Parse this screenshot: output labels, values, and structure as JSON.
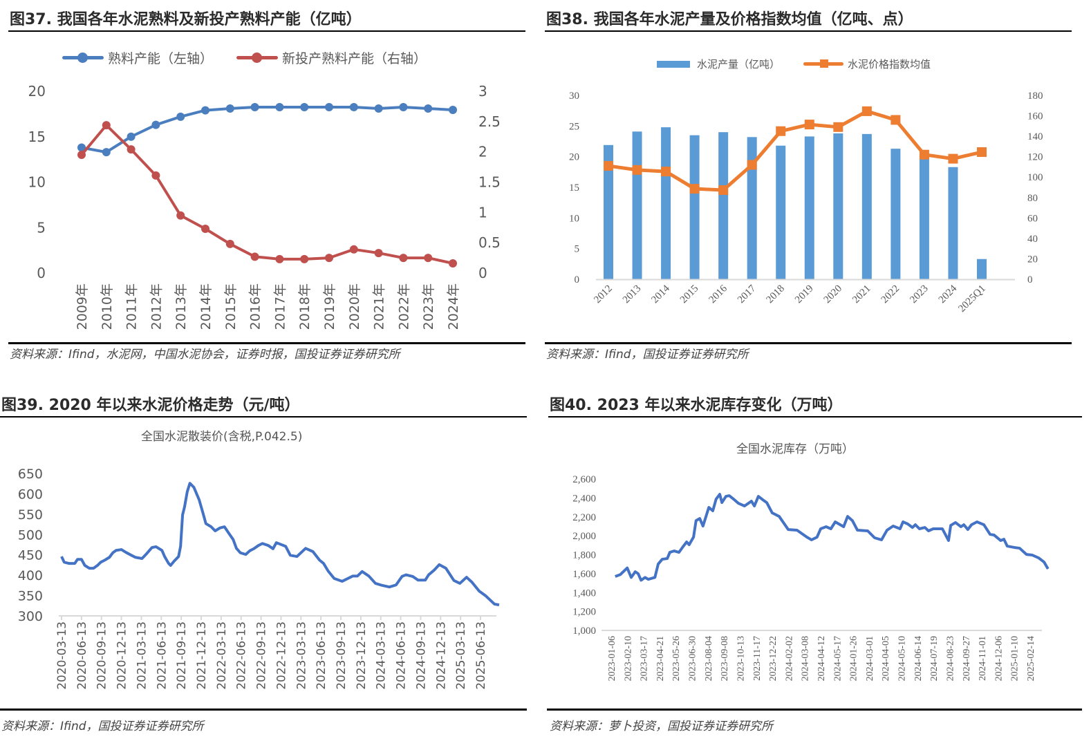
{
  "colors": {
    "blue": "#4a7ebf",
    "red": "#c0504d",
    "bar_blue": "#5b9bd5",
    "orange": "#ed7d31",
    "line_blue": "#4472c4"
  },
  "fig37": {
    "title": "图37. 我国各年水泥熟料及新投产熟料产能（亿吨）",
    "source": "资料来源：Ifind，水泥网，中国水泥协会，证券时报，国投证券证券研究所"
  },
  "fig38": {
    "title": "图38. 我国各年水泥产量及价格指数均值（亿吨、点）",
    "source": "资料来源：Ifind，国投证券证券研究所"
  },
  "fig39": {
    "title": "图39. 2020 年以来水泥价格走势（元/吨）",
    "source": "资料来源：Ifind，国投证券证券研究所"
  },
  "fig40": {
    "title": "图40. 2023 年以来水泥库存变化（万吨）",
    "source": "资料来源：萝卜投资，国投证券证券研究所"
  },
  "chart_data": [
    {
      "type": "line",
      "title": "图37. 我国各年水泥熟料及新投产熟料产能（亿吨）",
      "categories": [
        "2009年",
        "2010年",
        "2011年",
        "2012年",
        "2013年",
        "2014年",
        "2015年",
        "2016年",
        "2017年",
        "2018年",
        "2019年",
        "2020年",
        "2021年",
        "2022年",
        "2023年",
        "2024年"
      ],
      "series": [
        {
          "name": "熟料产能（左轴）",
          "axis": "left",
          "values": [
            13.8,
            13.3,
            15.0,
            16.3,
            17.2,
            17.9,
            18.1,
            18.25,
            18.25,
            18.25,
            18.25,
            18.25,
            18.1,
            18.25,
            18.1,
            17.95
          ]
        },
        {
          "name": "新投产熟料产能（右轴）",
          "axis": "right",
          "values": [
            1.95,
            2.44,
            2.04,
            1.61,
            0.95,
            0.73,
            0.48,
            0.27,
            0.23,
            0.23,
            0.25,
            0.39,
            0.33,
            0.25,
            0.25,
            0.16
          ]
        }
      ],
      "ylim_left": [
        0,
        20
      ],
      "yticks_left": [
        "0",
        "5",
        "10",
        "15",
        "20"
      ],
      "ylim_right": [
        0,
        3
      ],
      "yticks_right": [
        "0",
        "0.5",
        "1",
        "1.5",
        "2",
        "2.5",
        "3"
      ],
      "legend": "top",
      "grid": false
    },
    {
      "type": "bar",
      "title": "图38. 我国各年水泥产量及价格指数均值（亿吨、点）",
      "categories": [
        "2012",
        "2013",
        "2014",
        "2015",
        "2016",
        "2017",
        "2018",
        "2019",
        "2020",
        "2021",
        "2022",
        "2023",
        "2024",
        "2025Q1"
      ],
      "series": [
        {
          "name": "水泥产量（亿吨）",
          "type": "bar",
          "axis": "left",
          "values": [
            21.9,
            24.1,
            24.8,
            23.5,
            24.0,
            23.2,
            21.8,
            23.3,
            23.8,
            23.7,
            21.3,
            20.2,
            18.3,
            3.3
          ]
        },
        {
          "name": "水泥价格指数均值",
          "type": "line",
          "axis": "right",
          "values": [
            111,
            107,
            105.5,
            88.6,
            87.3,
            112,
            145,
            151.5,
            149,
            164.5,
            156,
            122,
            118,
            124.5
          ]
        }
      ],
      "ylim_left": [
        0,
        30
      ],
      "yticks_left": [
        "0",
        "5",
        "10",
        "15",
        "20",
        "25",
        "30"
      ],
      "ylim_right": [
        0,
        180
      ],
      "yticks_right": [
        "0",
        "20",
        "40",
        "60",
        "80",
        "100",
        "120",
        "140",
        "160",
        "180"
      ],
      "legend": "top",
      "grid": false
    },
    {
      "type": "line",
      "title": "全国水泥散装价(含税,P.042.5)",
      "x_unit": "months since 2020-03-13",
      "x": [
        0,
        0.4,
        1.1,
        2.0,
        2.4,
        3.0,
        3.5,
        4.2,
        4.8,
        5.4,
        5.9,
        6.5,
        7.2,
        7.7,
        8.2,
        9.0,
        9.7,
        10.5,
        11.1,
        12.1,
        12.8,
        13.6,
        14.2,
        15.1,
        15.5,
        16.1,
        16.4,
        16.9,
        17.6,
        17.9,
        18.2,
        18.5,
        18.9,
        19.3,
        19.9,
        20.7,
        21.3,
        21.7,
        22.5,
        23.1,
        23.8,
        24.5,
        25.2,
        25.8,
        26.3,
        26.9,
        27.7,
        28.3,
        28.9,
        29.6,
        30.2,
        31.1,
        31.8,
        32.3,
        33.7,
        34.4,
        35.4,
        36.7,
        37.8,
        38.8,
        39.4,
        40.1,
        41.0,
        42.2,
        43.8,
        44.5,
        45.2,
        46.2,
        47.2,
        48.2,
        49.3,
        50.3,
        51.2,
        51.8,
        52.8,
        53.6,
        54.7,
        55.2,
        56.0,
        56.8,
        57.8,
        59.0,
        59.9,
        60.9,
        61.7,
        62.8,
        63.8,
        65.1,
        65.8
      ],
      "values": [
        446,
        432,
        429,
        429,
        439,
        439,
        424,
        417,
        417,
        424,
        432,
        437,
        444,
        455,
        461,
        463,
        456,
        449,
        444,
        441,
        453,
        468,
        470,
        461,
        446,
        429,
        424,
        434,
        446,
        471,
        548,
        568,
        605,
        626,
        616,
        585,
        551,
        527,
        519,
        509,
        516,
        519,
        502,
        488,
        466,
        455,
        451,
        460,
        465,
        473,
        478,
        473,
        465,
        480,
        471,
        449,
        446,
        466,
        458,
        437,
        429,
        410,
        392,
        385,
        398,
        398,
        409,
        398,
        380,
        375,
        371,
        376,
        397,
        401,
        397,
        388,
        388,
        401,
        412,
        426,
        417,
        387,
        380,
        395,
        383,
        361,
        349,
        329,
        327
      ],
      "xlim": [
        0,
        66
      ],
      "xticks": [
        "2020-03-13",
        "2020-06-13",
        "2020-09-13",
        "2020-12-13",
        "2021-03-13",
        "2021-06-13",
        "2021-09-13",
        "2021-12-13",
        "2022-03-13",
        "2022-06-13",
        "2022-09-13",
        "2022-12-13",
        "2023-03-13",
        "2023-06-13",
        "2023-09-13",
        "2023-12-13",
        "2024-03-13",
        "2024-06-13",
        "2024-09-13",
        "2024-12-13",
        "2025-03-13",
        "2025-06-13"
      ],
      "ylim": [
        300,
        650
      ],
      "yticks": [
        "300",
        "350",
        "400",
        "450",
        "500",
        "550",
        "600",
        "650"
      ],
      "grid": false
    },
    {
      "type": "line",
      "title": "全国水泥库存（万吨）",
      "x_unit": "weeks since 2023-01-06",
      "x": [
        1.1,
        2.5,
        4.4,
        5.5,
        6.6,
        7.4,
        8.2,
        9.3,
        10.2,
        12.0,
        12.9,
        14.0,
        15.4,
        16.1,
        17.3,
        18.6,
        19.7,
        20.7,
        21.4,
        22.6,
        23.3,
        24.3,
        25.2,
        26.8,
        27.9,
        28.8,
        29.8,
        30.4,
        31.5,
        32.4,
        33.8,
        34.9,
        36.6,
        38.5,
        39.3,
        40.4,
        41.6,
        42.7,
        44.2,
        46.1,
        48.6,
        51.0,
        53.7,
        55.0,
        56.5,
        57.5,
        59.0,
        60.3,
        61.5,
        63.8,
        64.9,
        66.2,
        67.6,
        70.4,
        72.3,
        74.2,
        75.7,
        77.4,
        79.3,
        80.1,
        81.4,
        82.7,
        83.5,
        84.6,
        86.1,
        87.1,
        88.4,
        90.9,
        92.6,
        93.2,
        94.5,
        96.0,
        96.8,
        97.9,
        98.9,
        100.4,
        102.3,
        104.0,
        105.1,
        106.9,
        107.8,
        108.7,
        110.6,
        112.1,
        114.0,
        115.6,
        117.3,
        118.8,
        119.9
      ],
      "values": [
        1570,
        1590,
        1660,
        1560,
        1620,
        1600,
        1530,
        1560,
        1540,
        1560,
        1701,
        1752,
        1760,
        1825,
        1840,
        1825,
        1884,
        1935,
        1906,
        1986,
        2161,
        2183,
        2103,
        2300,
        2264,
        2388,
        2439,
        2351,
        2417,
        2424,
        2381,
        2344,
        2315,
        2366,
        2315,
        2417,
        2381,
        2351,
        2242,
        2205,
        2066,
        2059,
        1986,
        1957,
        1986,
        2074,
        2096,
        2074,
        2147,
        2096,
        2205,
        2161,
        2059,
        2052,
        1979,
        1957,
        2059,
        2103,
        2074,
        2147,
        2125,
        2088,
        2117,
        2074,
        2088,
        2052,
        2074,
        2074,
        1950,
        2110,
        2140,
        2096,
        2117,
        2066,
        2117,
        2147,
        2117,
        2015,
        2008,
        1950,
        1964,
        1891,
        1877,
        1869,
        1803,
        1796,
        1767,
        1723,
        1650
      ],
      "xlim": [
        -2,
        120
      ],
      "xticks": [
        "2023-01-06",
        "2023-02-10",
        "2023-03-17",
        "2023-04-21",
        "2023-05-26",
        "2023-06-30",
        "2023-08-04",
        "2023-09-08",
        "2023-10-13",
        "2023-11-17",
        "2023-12-22",
        "2024-02-02",
        "2024-03-08",
        "2024-04-12",
        "2024-05-17",
        "2024-01-26",
        "2024-03-01",
        "2024-04-05",
        "2024-05-10",
        "2024-06-14",
        "2024-07-19",
        "2024-08-23",
        "2024-09-27",
        "2024-11-01",
        "2024-12-06",
        "2025-01-10",
        "2025-02-14"
      ],
      "ylim": [
        1000,
        2600
      ],
      "yticks": [
        "1,000",
        "1,200",
        "1,400",
        "1,600",
        "1,800",
        "2,000",
        "2,200",
        "2,400",
        "2,600"
      ],
      "grid": false
    }
  ]
}
